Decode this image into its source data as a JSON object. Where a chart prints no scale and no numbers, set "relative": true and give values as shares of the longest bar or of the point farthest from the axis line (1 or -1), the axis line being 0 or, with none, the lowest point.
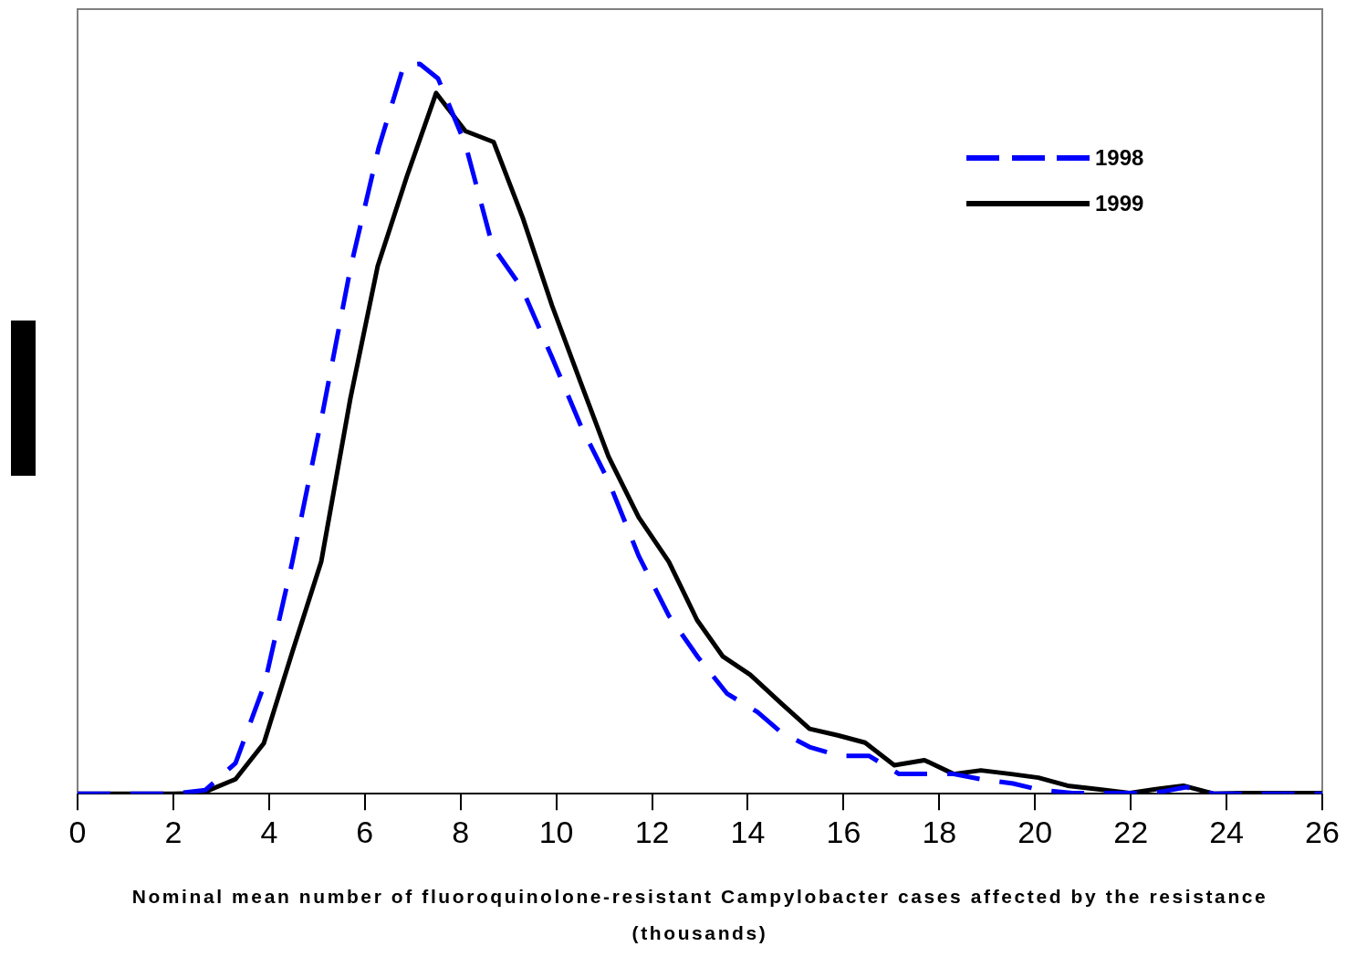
{
  "chart_data": {
    "type": "line",
    "relative": true,
    "xlabel": "Nominal mean number of fluoroquinolone-resistant Campylobacter cases affected by the resistance (thousands)",
    "xlim": [
      0,
      26
    ],
    "xticks": [
      0,
      2,
      4,
      6,
      8,
      10,
      12,
      14,
      16,
      18,
      20,
      22,
      24,
      26
    ],
    "grid": false,
    "legend": "top right",
    "marker": "none",
    "series": [
      {
        "name": "1998",
        "color": "#0000ff",
        "line_style": "dashed",
        "x": [
          0,
          2.0,
          2.67,
          3.3,
          3.91,
          4.48,
          5.09,
          5.7,
          6.29,
          6.81,
          7.15,
          7.53,
          8.1,
          8.67,
          9.28,
          9.91,
          10.52,
          11.1,
          11.72,
          12.35,
          12.96,
          13.57,
          14.2,
          14.68,
          15.29,
          15.92,
          16.53,
          17.16,
          18.3,
          18.87,
          19.54,
          20.11,
          20.78,
          21.92,
          22.49,
          23.16,
          23.73,
          26
        ],
        "values": [
          0,
          0,
          0.005,
          0.042,
          0.151,
          0.316,
          0.512,
          0.72,
          0.885,
          0.997,
          1,
          0.98,
          0.89,
          0.75,
          0.693,
          0.598,
          0.503,
          0.427,
          0.326,
          0.244,
          0.187,
          0.137,
          0.112,
          0.085,
          0.064,
          0.052,
          0.052,
          0.027,
          0.027,
          0.02,
          0.014,
          0.005,
          0.001,
          0.001,
          0.001,
          0.009,
          0,
          0
        ]
      },
      {
        "name": "1999",
        "color": "#000000",
        "line_style": "solid",
        "x": [
          0,
          1.0,
          2.0,
          2.61,
          3.3,
          3.89,
          4.48,
          5.09,
          5.7,
          6.27,
          6.88,
          7.49,
          8.1,
          8.69,
          9.3,
          9.91,
          10.5,
          11.09,
          11.72,
          12.35,
          12.94,
          13.48,
          14.05,
          14.68,
          15.29,
          15.88,
          16.45,
          17.06,
          17.69,
          18.3,
          18.87,
          19.5,
          20.07,
          20.68,
          21.35,
          21.98,
          22.49,
          23.1,
          23.73,
          24.3,
          26
        ],
        "values": [
          0,
          0,
          0,
          0.001,
          0.02,
          0.069,
          0.193,
          0.318,
          0.542,
          0.723,
          0.846,
          0.96,
          0.908,
          0.893,
          0.789,
          0.669,
          0.565,
          0.462,
          0.379,
          0.318,
          0.238,
          0.188,
          0.163,
          0.125,
          0.089,
          0.08,
          0.07,
          0.039,
          0.046,
          0.027,
          0.032,
          0.027,
          0.022,
          0.011,
          0.006,
          0.001,
          0.006,
          0.011,
          0,
          0.001,
          0.001
        ]
      }
    ]
  }
}
